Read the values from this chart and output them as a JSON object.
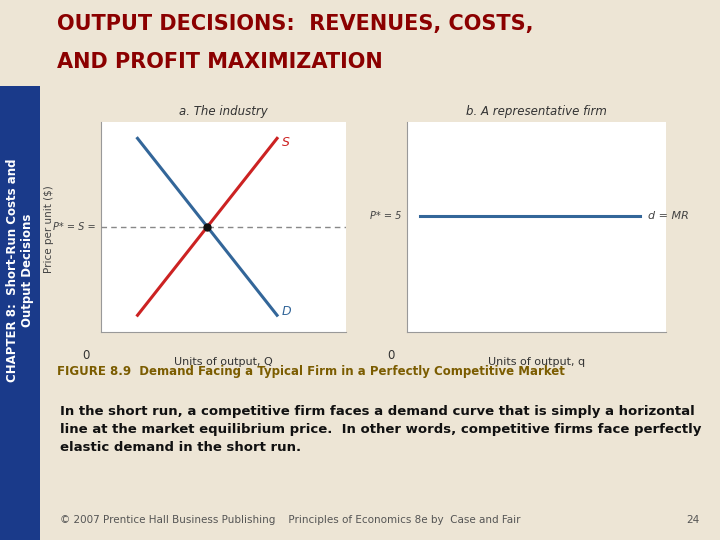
{
  "title_line1": "OUTPUT DECISIONS:  REVENUES, COSTS,",
  "title_line2": "AND PROFIT MAXIMIZATION",
  "title_color": "#8B0000",
  "title_fontsize": 15,
  "chapter_label": "CHAPTER 8:  Short-Run Costs and\nOutput Decisions",
  "chapter_color": "#1a3a8a",
  "chapter_fontsize": 8.5,
  "panel_a_title": "a. The industry",
  "panel_b_title": "b. A representative firm",
  "panel_a_xlabel": "Units of output, Q",
  "panel_b_xlabel": "Units of output, q",
  "ylabel": "Price per unit ($)",
  "supply_label": "S",
  "demand_label": "D",
  "d_mr_label": "d = MR",
  "p_star_label_left": "P* = S =",
  "p_star_label_right": "P* = 5",
  "supply_color": "#CC2222",
  "demand_color": "#336699",
  "horizontal_line_color": "#336699",
  "dashed_line_color": "#888888",
  "equilibrium_dot_color": "#111111",
  "caption_text_bold": "FIGURE 8.9",
  "caption_text_rest": "  Demand Facing a Typical Firm in a Perfectly Competitive Market",
  "caption_color": "#7B5C00",
  "caption_bg": "#C8B98A",
  "body_text_line1": "In the short run, a competitive firm faces a demand curve that is simply a horizontal",
  "body_text_line2": "line at the market equilibrium price.  In other words, competitive firms face perfectly",
  "body_text_line3": "elastic demand in the short run.",
  "body_text_fontsize": 9.5,
  "footer_text": "© 2007 Prentice Hall Business Publishing    Principles of Economics 8e by  Case and Fair",
  "footer_page": "24",
  "bg_header": "#C8B99A",
  "bg_body": "#EDE5D5",
  "bg_chart_area": "#F5F0E8",
  "left_bar_color": "#1a3a8a",
  "graph_bg": "#FFFFFF",
  "zero_label": "0"
}
